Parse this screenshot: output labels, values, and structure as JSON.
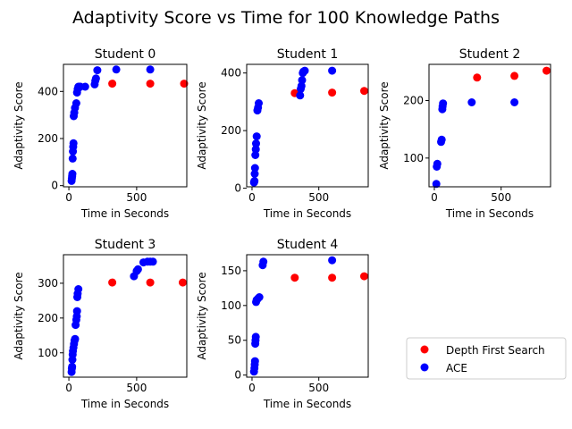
{
  "suptitle": "Adaptivity Score vs Time for 100 Knowledge Paths",
  "legend": {
    "placement": "lower-right",
    "entries": [
      {
        "label": "Depth First Search",
        "color": "#ff0000"
      },
      {
        "label": "ACE",
        "color": "#0000ff"
      }
    ]
  },
  "chart_data": [
    {
      "type": "scatter",
      "title": "Student 0",
      "xlabel": "Time in Seconds",
      "ylabel": "Adaptivity Score",
      "xlim": [
        -40,
        870
      ],
      "ylim": [
        -5,
        515
      ],
      "xticks": [
        0,
        500
      ],
      "yticks": [
        0,
        200,
        400
      ],
      "series": [
        {
          "name": "Depth First Search",
          "color": "#ff0000",
          "x": [
            320,
            600,
            850
          ],
          "y": [
            433,
            433,
            433
          ]
        },
        {
          "name": "ACE",
          "color": "#0000ff",
          "x": [
            20,
            22,
            24,
            26,
            28,
            30,
            32,
            34,
            36,
            40,
            45,
            55,
            60,
            65,
            70,
            80,
            85,
            120,
            190,
            195,
            200,
            210,
            350,
            600
          ],
          "y": [
            20,
            30,
            40,
            50,
            115,
            145,
            165,
            180,
            295,
            310,
            330,
            350,
            395,
            410,
            420,
            420,
            420,
            420,
            430,
            445,
            455,
            490,
            493,
            493
          ]
        }
      ]
    },
    {
      "type": "scatter",
      "title": "Student 1",
      "xlabel": "Time in Seconds",
      "ylabel": "Adaptivity Score",
      "xlim": [
        -40,
        870
      ],
      "ylim": [
        5,
        430
      ],
      "xticks": [
        0,
        500
      ],
      "yticks": [
        0,
        200,
        400
      ],
      "series": [
        {
          "name": "Depth First Search",
          "color": "#ff0000",
          "x": [
            320,
            600,
            840
          ],
          "y": [
            330,
            332,
            338
          ]
        },
        {
          "name": "ACE",
          "color": "#0000ff",
          "x": [
            15,
            18,
            20,
            22,
            25,
            28,
            30,
            35,
            40,
            45,
            50,
            360,
            365,
            370,
            375,
            380,
            385,
            395,
            600
          ],
          "y": [
            20,
            25,
            50,
            70,
            115,
            135,
            155,
            180,
            270,
            280,
            295,
            322,
            345,
            355,
            375,
            400,
            405,
            408,
            408
          ]
        }
      ]
    },
    {
      "type": "scatter",
      "title": "Student 2",
      "xlabel": "Time in Seconds",
      "ylabel": "Adaptivity Score",
      "xlim": [
        -40,
        870
      ],
      "ylim": [
        50,
        263
      ],
      "xticks": [
        0,
        500
      ],
      "yticks": [
        100,
        200
      ],
      "series": [
        {
          "name": "Depth First Search",
          "color": "#ff0000",
          "x": [
            320,
            600,
            840
          ],
          "y": [
            240,
            243,
            252
          ]
        },
        {
          "name": "ACE",
          "color": "#0000ff",
          "x": [
            15,
            18,
            22,
            50,
            55,
            60,
            62,
            65,
            280,
            600
          ],
          "y": [
            55,
            85,
            90,
            128,
            132,
            185,
            190,
            195,
            197,
            197
          ]
        }
      ]
    },
    {
      "type": "scatter",
      "title": "Student 3",
      "xlabel": "Time in Seconds",
      "ylabel": "Adaptivity Score",
      "xlim": [
        -40,
        870
      ],
      "ylim": [
        30,
        382
      ],
      "xticks": [
        0,
        500
      ],
      "yticks": [
        100,
        200,
        300
      ],
      "series": [
        {
          "name": "Depth First Search",
          "color": "#ff0000",
          "x": [
            320,
            600,
            840
          ],
          "y": [
            302,
            302,
            302
          ]
        },
        {
          "name": "ACE",
          "color": "#0000ff",
          "x": [
            20,
            22,
            24,
            26,
            28,
            30,
            34,
            38,
            42,
            46,
            50,
            55,
            58,
            60,
            62,
            65,
            70,
            480,
            500,
            510,
            550,
            580,
            600,
            620
          ],
          "y": [
            45,
            55,
            60,
            80,
            95,
            105,
            115,
            125,
            135,
            140,
            180,
            195,
            205,
            220,
            260,
            270,
            283,
            320,
            335,
            340,
            360,
            362,
            362,
            362
          ]
        }
      ]
    },
    {
      "type": "scatter",
      "title": "Student 4",
      "xlabel": "Time in Seconds",
      "ylabel": "Adaptivity Score",
      "xlim": [
        -40,
        870
      ],
      "ylim": [
        -3,
        173
      ],
      "xticks": [
        0,
        500
      ],
      "yticks": [
        0,
        50,
        100,
        150
      ],
      "series": [
        {
          "name": "Depth First Search",
          "color": "#ff0000",
          "x": [
            320,
            600,
            840
          ],
          "y": [
            140,
            140,
            142
          ]
        },
        {
          "name": "ACE",
          "color": "#0000ff",
          "x": [
            15,
            18,
            20,
            22,
            24,
            26,
            28,
            30,
            35,
            45,
            55,
            80,
            85,
            600
          ],
          "y": [
            5,
            10,
            15,
            20,
            45,
            50,
            55,
            105,
            108,
            110,
            112,
            158,
            163,
            165
          ]
        }
      ]
    }
  ]
}
